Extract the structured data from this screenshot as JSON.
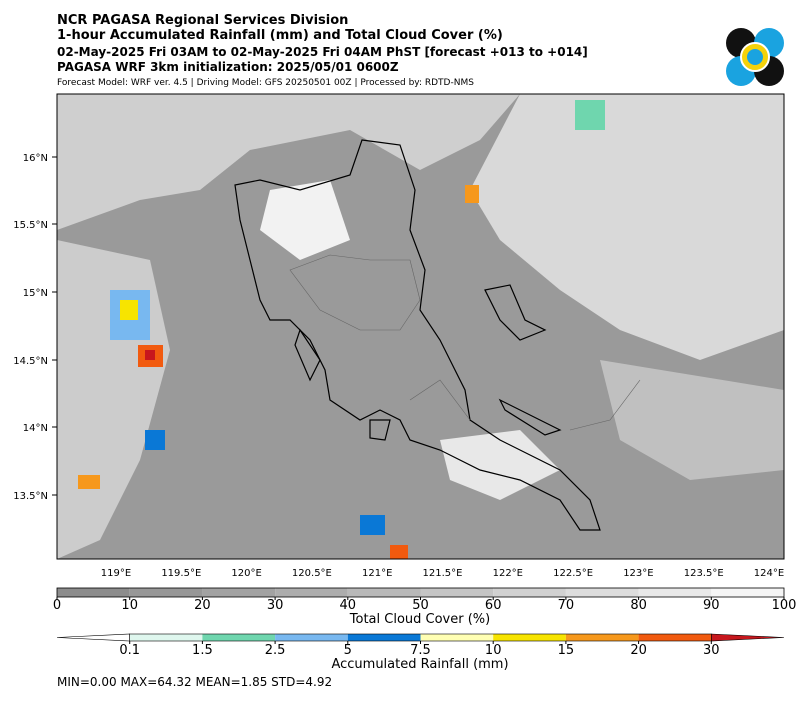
{
  "header": {
    "title": "NCR PAGASA Regional Services Division",
    "subtitle": "1-hour Accumulated Rainfall (mm) and Total Cloud Cover (%)",
    "valid_time": "02-May-2025 Fri 03AM to 02-May-2025 Fri 04AM PhST [forecast +013 to +014]",
    "init": "PAGASA WRF 3km initialization: 2025/05/01 0600Z",
    "model_info": "Forecast Model: WRF ver. 4.5 | Driving Model: GFS 20250501 00Z | Processed by: RDTD-NMS"
  },
  "map": {
    "lat_labels": [
      "16°N",
      "15.5°N",
      "15°N",
      "14.5°N",
      "14°N",
      "13.5°N"
    ],
    "lon_labels": [
      "119°E",
      "119.5°E",
      "120°E",
      "120.5°E",
      "121°E",
      "121.5°E",
      "122°E",
      "122.5°E",
      "123°E",
      "123.5°E",
      "124°E"
    ]
  },
  "cloud_colorbar": {
    "label": "Total Cloud Cover (%)",
    "ticks": [
      0,
      10,
      20,
      30,
      40,
      50,
      60,
      70,
      80,
      90,
      100
    ],
    "colors": [
      "#8c8c8c",
      "#979797",
      "#a2a2a2",
      "#adadad",
      "#b9b9b9",
      "#c5c5c5",
      "#d1d1d1",
      "#dddddd",
      "#e9e9e9",
      "#f5f5f5"
    ]
  },
  "rain_colorbar": {
    "label": "Accumulated Rainfall (mm)",
    "ticks": [
      0.1,
      1.5,
      2.5,
      5,
      7.5,
      10,
      15,
      20,
      30
    ],
    "colors": [
      "#ffffff",
      "#dff7ee",
      "#6fd6ae",
      "#78b8f0",
      "#0a78d6",
      "#ffffb3",
      "#f7e400",
      "#f6981c",
      "#f15a0f",
      "#c7171d"
    ]
  },
  "stats": "MIN=0.00   MAX=64.32   MEAN=1.85   STD=4.92"
}
